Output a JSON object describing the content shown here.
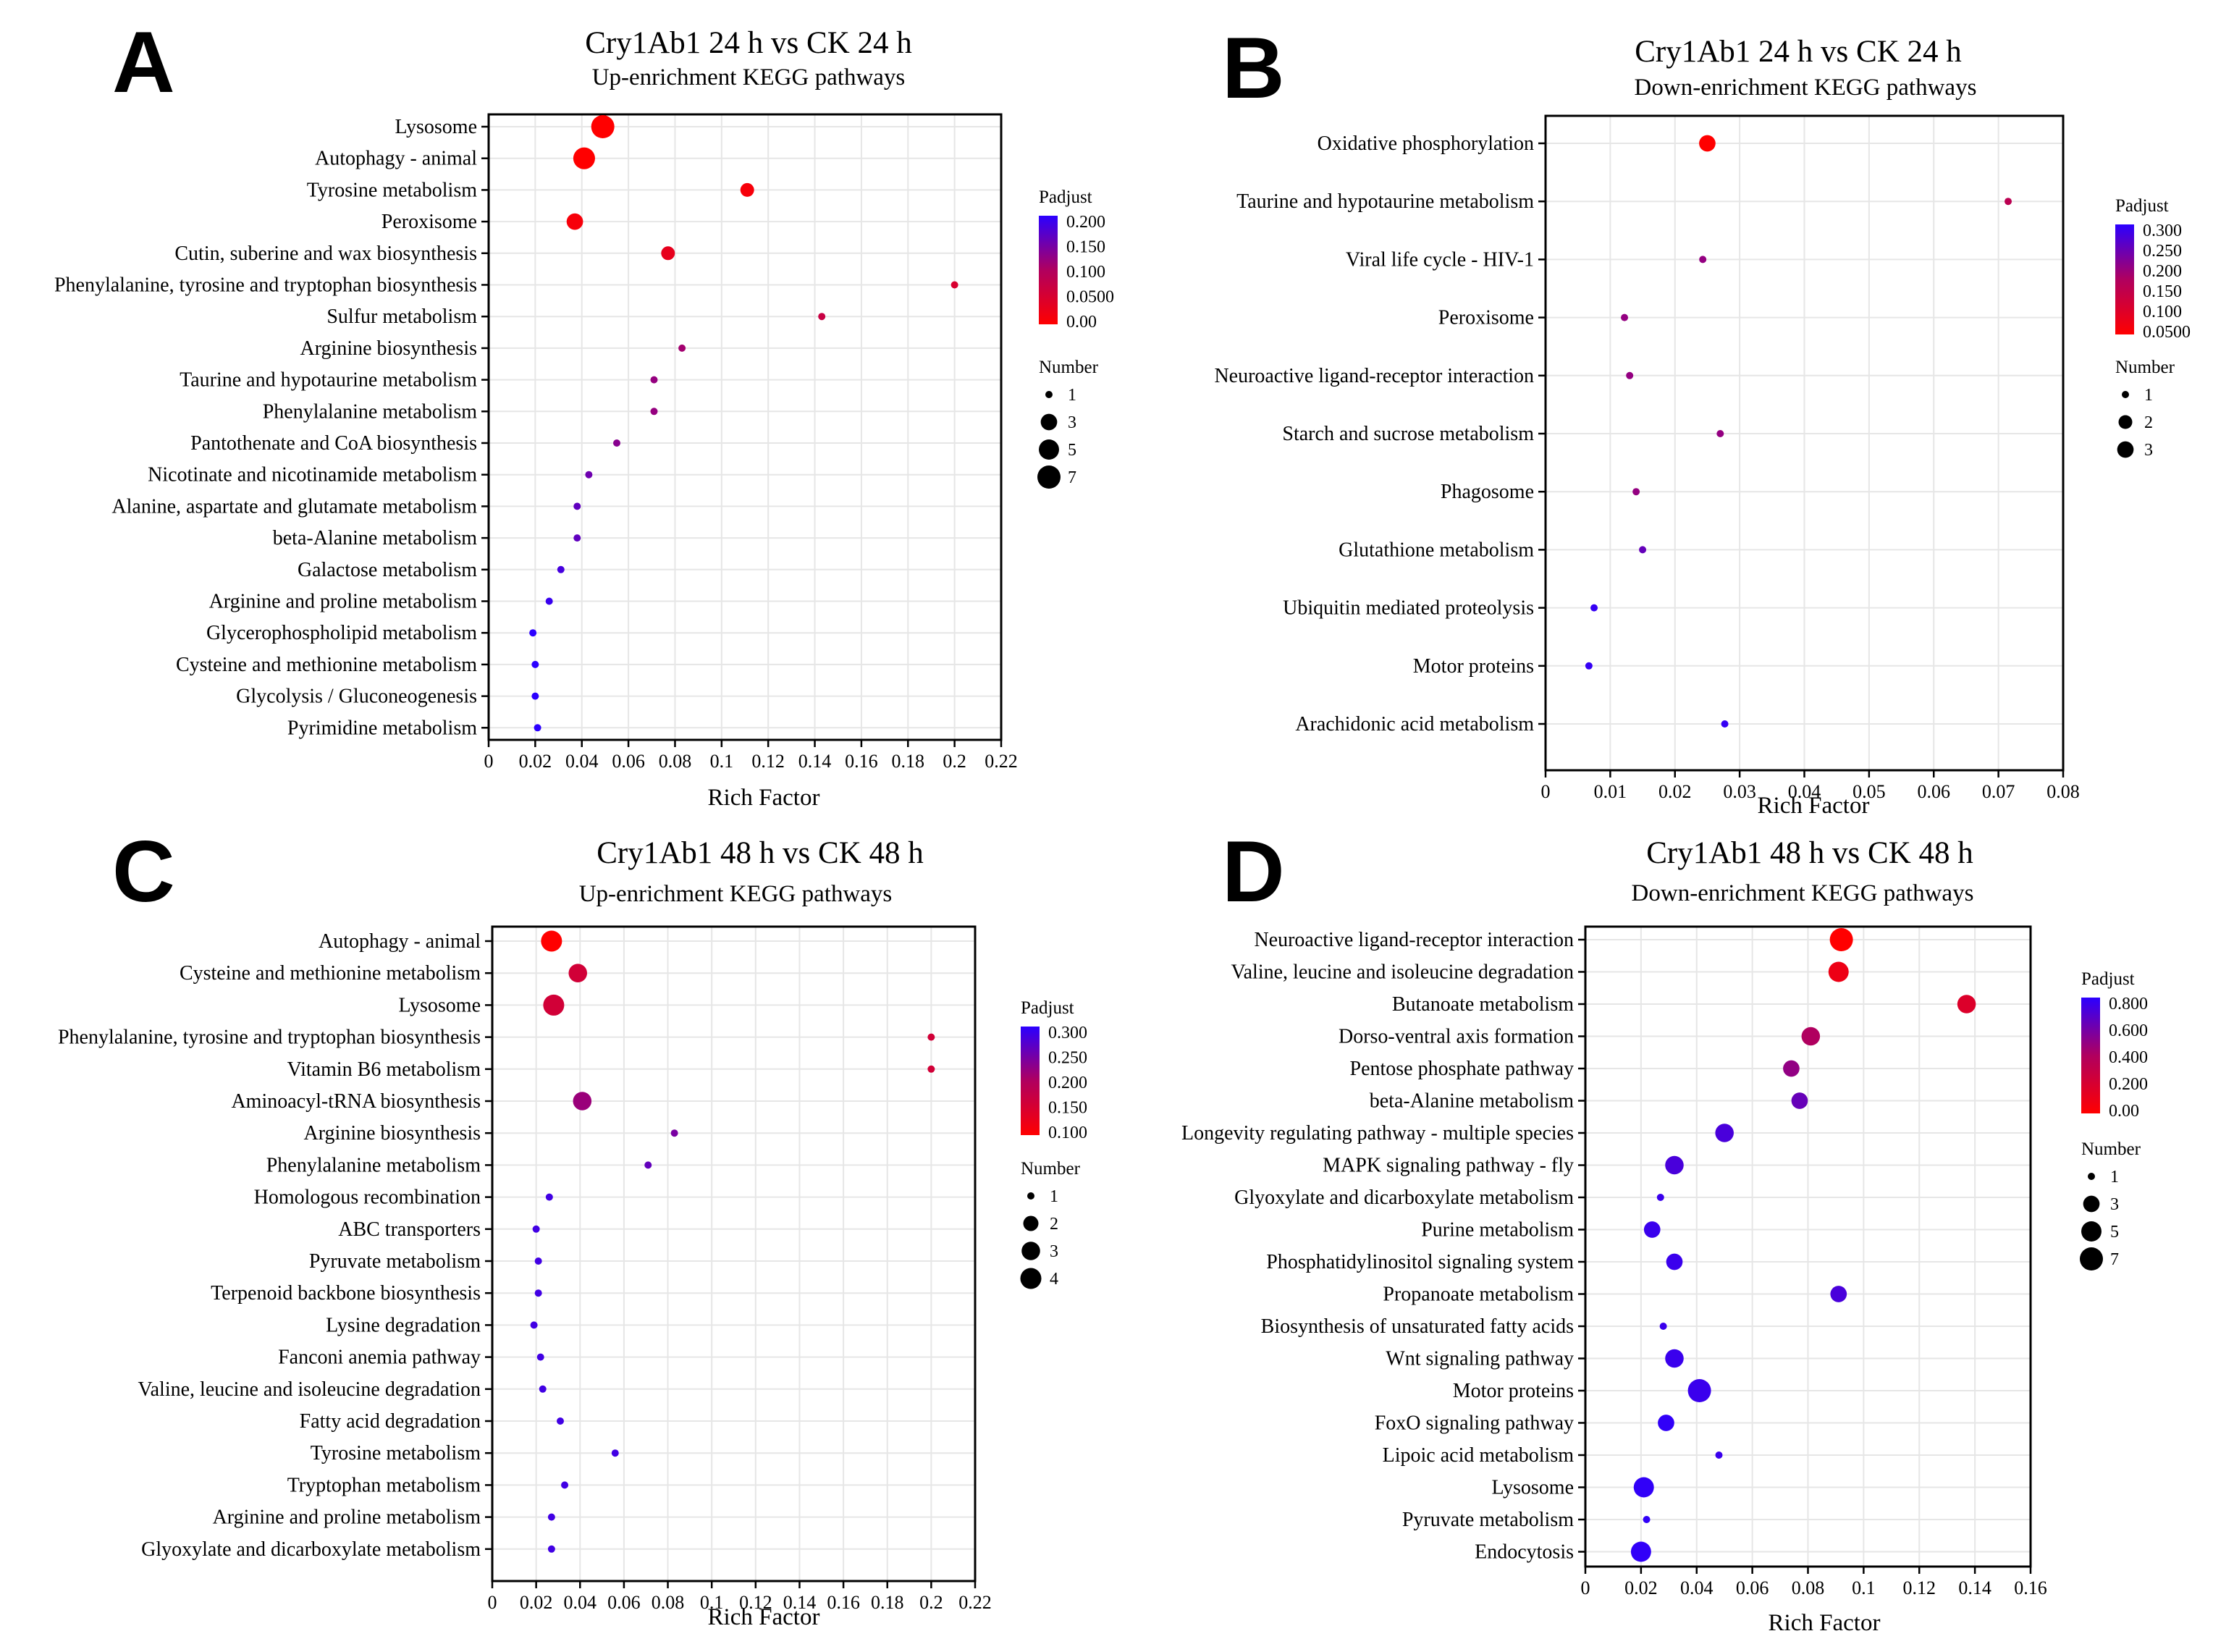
{
  "colors": {
    "low_padjust": "#ff0000",
    "high_padjust": "#2b00ff",
    "frame": "#000000",
    "grid": "#e6e6e6"
  },
  "chart_data": [
    {
      "panel": "A",
      "type": "scatter",
      "title": "Cry1Ab1 24 h vs CK 24 h",
      "subtitle": "Up-enrichment KEGG pathways",
      "xlabel": "Rich Factor",
      "xlim": [
        0,
        0.22
      ],
      "xticks": [
        0,
        0.02,
        0.04,
        0.06,
        0.08,
        0.1,
        0.12,
        0.14,
        0.16,
        0.18,
        0.2,
        0.22
      ],
      "xtick_labels": [
        "0",
        "0.02",
        "0.04",
        "0.06",
        "0.08",
        "0.1",
        "0.12",
        "0.14",
        "0.16",
        "0.18",
        "0.2",
        "0.22"
      ],
      "color_legend": {
        "title": "Padjust",
        "min": 0,
        "max": 0.2,
        "ticks": [
          "0.200",
          "0.150",
          "0.100",
          "0.0500",
          "0.00"
        ]
      },
      "size_legend": {
        "title": "Number",
        "values": [
          1,
          3,
          5,
          7
        ],
        "max": 7
      },
      "points": [
        {
          "pathway": "Lysosome",
          "rich_factor": 0.049,
          "number": 7,
          "padjust": 0.0
        },
        {
          "pathway": "Autophagy - animal",
          "rich_factor": 0.041,
          "number": 6,
          "padjust": 0.0
        },
        {
          "pathway": "Tyrosine metabolism",
          "rich_factor": 0.111,
          "number": 2,
          "padjust": 0.01
        },
        {
          "pathway": "Peroxisome",
          "rich_factor": 0.037,
          "number": 3,
          "padjust": 0.01
        },
        {
          "pathway": "Cutin, suberine and wax biosynthesis",
          "rich_factor": 0.077,
          "number": 2,
          "padjust": 0.03
        },
        {
          "pathway": "Phenylalanine, tyrosine and tryptophan biosynthesis",
          "rich_factor": 0.2,
          "number": 1,
          "padjust": 0.05
        },
        {
          "pathway": "Sulfur metabolism",
          "rich_factor": 0.143,
          "number": 1,
          "padjust": 0.07
        },
        {
          "pathway": "Arginine biosynthesis",
          "rich_factor": 0.083,
          "number": 1,
          "padjust": 0.11
        },
        {
          "pathway": "Taurine and hypotaurine metabolism",
          "rich_factor": 0.071,
          "number": 1,
          "padjust": 0.12
        },
        {
          "pathway": "Phenylalanine metabolism",
          "rich_factor": 0.071,
          "number": 1,
          "padjust": 0.12
        },
        {
          "pathway": "Pantothenate and CoA biosynthesis",
          "rich_factor": 0.055,
          "number": 1,
          "padjust": 0.13
        },
        {
          "pathway": "Nicotinate and nicotinamide metabolism",
          "rich_factor": 0.043,
          "number": 1,
          "padjust": 0.15
        },
        {
          "pathway": "Alanine, aspartate and glutamate metabolism",
          "rich_factor": 0.038,
          "number": 1,
          "padjust": 0.16
        },
        {
          "pathway": "beta-Alanine metabolism",
          "rich_factor": 0.038,
          "number": 1,
          "padjust": 0.16
        },
        {
          "pathway": "Galactose metabolism",
          "rich_factor": 0.031,
          "number": 1,
          "padjust": 0.18
        },
        {
          "pathway": "Arginine and proline metabolism",
          "rich_factor": 0.026,
          "number": 1,
          "padjust": 0.19
        },
        {
          "pathway": "Glycerophospholipid metabolism",
          "rich_factor": 0.019,
          "number": 1,
          "padjust": 0.2
        },
        {
          "pathway": "Cysteine and methionine metabolism",
          "rich_factor": 0.02,
          "number": 1,
          "padjust": 0.2
        },
        {
          "pathway": "Glycolysis / Gluconeogenesis",
          "rich_factor": 0.02,
          "number": 1,
          "padjust": 0.2
        },
        {
          "pathway": "Pyrimidine metabolism",
          "rich_factor": 0.021,
          "number": 1,
          "padjust": 0.2
        }
      ]
    },
    {
      "panel": "B",
      "type": "scatter",
      "title": "Cry1Ab1 24 h vs CK 24 h",
      "subtitle": "Down-enrichment KEGG pathways",
      "xlabel": "Rich Factor",
      "xlim": [
        0,
        0.08
      ],
      "xticks": [
        0,
        0.01,
        0.02,
        0.03,
        0.04,
        0.05,
        0.06,
        0.07,
        0.08
      ],
      "xtick_labels": [
        "0",
        "0.01",
        "0.02",
        "0.03",
        "0.04",
        "0.05",
        "0.06",
        "0.07",
        "0.08"
      ],
      "color_legend": {
        "title": "Padjust",
        "min": 0.03,
        "max": 0.31,
        "ticks": [
          "0.300",
          "0.250",
          "0.200",
          "0.150",
          "0.100",
          "0.0500"
        ]
      },
      "size_legend": {
        "title": "Number",
        "values": [
          1,
          2,
          3
        ],
        "max": 7
      },
      "points": [
        {
          "pathway": "Oxidative phosphorylation",
          "rich_factor": 0.025,
          "number": 3,
          "padjust": 0.03
        },
        {
          "pathway": "Taurine and hypotaurine metabolism",
          "rich_factor": 0.0715,
          "number": 1,
          "padjust": 0.15
        },
        {
          "pathway": "Viral life cycle - HIV-1",
          "rich_factor": 0.0243,
          "number": 1,
          "padjust": 0.2
        },
        {
          "pathway": "Peroxisome",
          "rich_factor": 0.0122,
          "number": 1,
          "padjust": 0.2
        },
        {
          "pathway": "Neuroactive ligand-receptor interaction",
          "rich_factor": 0.013,
          "number": 1,
          "padjust": 0.2
        },
        {
          "pathway": "Starch and sucrose metabolism",
          "rich_factor": 0.027,
          "number": 1,
          "padjust": 0.2
        },
        {
          "pathway": "Phagosome",
          "rich_factor": 0.014,
          "number": 1,
          "padjust": 0.2
        },
        {
          "pathway": "Glutathione metabolism",
          "rich_factor": 0.015,
          "number": 1,
          "padjust": 0.25
        },
        {
          "pathway": "Ubiquitin mediated proteolysis",
          "rich_factor": 0.0075,
          "number": 1,
          "padjust": 0.3
        },
        {
          "pathway": "Motor proteins",
          "rich_factor": 0.0067,
          "number": 1,
          "padjust": 0.3
        },
        {
          "pathway": "Arachidonic acid metabolism",
          "rich_factor": 0.0277,
          "number": 1,
          "padjust": 0.3
        }
      ]
    },
    {
      "panel": "C",
      "type": "scatter",
      "title": "Cry1Ab1 48 h vs CK 48 h",
      "subtitle": "Up-enrichment KEGG pathways",
      "xlabel": "Rich Factor",
      "xlim": [
        0,
        0.22
      ],
      "xticks": [
        0,
        0.02,
        0.04,
        0.06,
        0.08,
        0.1,
        0.12,
        0.14,
        0.16,
        0.18,
        0.2,
        0.22
      ],
      "xtick_labels": [
        "0",
        "0.02",
        "0.04",
        "0.06",
        "0.08",
        "0.1",
        "0.12",
        "0.14",
        "0.16",
        "0.18",
        "0.2",
        "0.22"
      ],
      "color_legend": {
        "title": "Padjust",
        "min": 0.08,
        "max": 0.32,
        "ticks": [
          "0.300",
          "0.250",
          "0.200",
          "0.150",
          "0.100"
        ]
      },
      "size_legend": {
        "title": "Number",
        "values": [
          1,
          2,
          3,
          4
        ],
        "max": 5
      },
      "points": [
        {
          "pathway": "Autophagy - animal",
          "rich_factor": 0.027,
          "number": 4,
          "padjust": 0.08
        },
        {
          "pathway": "Cysteine and methionine metabolism",
          "rich_factor": 0.039,
          "number": 3,
          "padjust": 0.15
        },
        {
          "pathway": "Lysosome",
          "rich_factor": 0.028,
          "number": 4,
          "padjust": 0.15
        },
        {
          "pathway": "Phenylalanine, tyrosine and tryptophan biosynthesis",
          "rich_factor": 0.2,
          "number": 1,
          "padjust": 0.15
        },
        {
          "pathway": "Vitamin B6 metabolism",
          "rich_factor": 0.2,
          "number": 1,
          "padjust": 0.15
        },
        {
          "pathway": "Aminoacyl-tRNA biosynthesis",
          "rich_factor": 0.041,
          "number": 3,
          "padjust": 0.22
        },
        {
          "pathway": "Arginine biosynthesis",
          "rich_factor": 0.083,
          "number": 1,
          "padjust": 0.25
        },
        {
          "pathway": "Phenylalanine metabolism",
          "rich_factor": 0.071,
          "number": 1,
          "padjust": 0.27
        },
        {
          "pathway": "Homologous recombination",
          "rich_factor": 0.026,
          "number": 1,
          "padjust": 0.3
        },
        {
          "pathway": "ABC transporters",
          "rich_factor": 0.02,
          "number": 1,
          "padjust": 0.3
        },
        {
          "pathway": "Pyruvate metabolism",
          "rich_factor": 0.021,
          "number": 1,
          "padjust": 0.3
        },
        {
          "pathway": "Terpenoid backbone biosynthesis",
          "rich_factor": 0.021,
          "number": 1,
          "padjust": 0.3
        },
        {
          "pathway": "Lysine degradation",
          "rich_factor": 0.019,
          "number": 1,
          "padjust": 0.3
        },
        {
          "pathway": "Fanconi anemia pathway",
          "rich_factor": 0.022,
          "number": 1,
          "padjust": 0.3
        },
        {
          "pathway": "Valine, leucine and isoleucine degradation",
          "rich_factor": 0.023,
          "number": 1,
          "padjust": 0.3
        },
        {
          "pathway": "Fatty acid degradation",
          "rich_factor": 0.031,
          "number": 1,
          "padjust": 0.3
        },
        {
          "pathway": "Tyrosine metabolism",
          "rich_factor": 0.056,
          "number": 1,
          "padjust": 0.3
        },
        {
          "pathway": "Tryptophan metabolism",
          "rich_factor": 0.033,
          "number": 1,
          "padjust": 0.3
        },
        {
          "pathway": "Arginine and proline metabolism",
          "rich_factor": 0.027,
          "number": 1,
          "padjust": 0.3
        },
        {
          "pathway": "Glyoxylate and dicarboxylate metabolism",
          "rich_factor": 0.027,
          "number": 1,
          "padjust": 0.3
        }
      ]
    },
    {
      "panel": "D",
      "type": "scatter",
      "title": "Cry1Ab1 48 h vs CK 48 h",
      "subtitle": "Down-enrichment KEGG pathways",
      "xlabel": "Rich Factor",
      "xlim": [
        0,
        0.16
      ],
      "xticks": [
        0,
        0.02,
        0.04,
        0.06,
        0.08,
        0.1,
        0.12,
        0.14,
        0.16
      ],
      "xtick_labels": [
        "0",
        "0.02",
        "0.04",
        "0.06",
        "0.08",
        "0.1",
        "0.12",
        "0.14",
        "0.16"
      ],
      "color_legend": {
        "title": "Padjust",
        "min": 0,
        "max": 0.9,
        "ticks": [
          "0.800",
          "0.600",
          "0.400",
          "0.200",
          "0.00"
        ]
      },
      "size_legend": {
        "title": "Number",
        "values": [
          1,
          3,
          5,
          7
        ],
        "max": 7
      },
      "points": [
        {
          "pathway": "Neuroactive ligand-receptor interaction",
          "rich_factor": 0.092,
          "number": 7,
          "padjust": 0.0
        },
        {
          "pathway": "Valine, leucine and isoleucine degradation",
          "rich_factor": 0.091,
          "number": 5,
          "padjust": 0.1
        },
        {
          "pathway": "Butanoate metabolism",
          "rich_factor": 0.137,
          "number": 4,
          "padjust": 0.2
        },
        {
          "pathway": "Dorso-ventral axis formation",
          "rich_factor": 0.081,
          "number": 4,
          "padjust": 0.45
        },
        {
          "pathway": "Pentose phosphate pathway",
          "rich_factor": 0.074,
          "number": 3,
          "padjust": 0.55
        },
        {
          "pathway": "beta-Alanine metabolism",
          "rich_factor": 0.077,
          "number": 3,
          "padjust": 0.7
        },
        {
          "pathway": "Longevity regulating pathway - multiple species",
          "rich_factor": 0.05,
          "number": 4,
          "padjust": 0.8
        },
        {
          "pathway": "MAPK signaling pathway - fly",
          "rich_factor": 0.032,
          "number": 4,
          "padjust": 0.8
        },
        {
          "pathway": "Glyoxylate and dicarboxylate metabolism",
          "rich_factor": 0.027,
          "number": 1,
          "padjust": 0.85
        },
        {
          "pathway": "Purine metabolism",
          "rich_factor": 0.024,
          "number": 3,
          "padjust": 0.85
        },
        {
          "pathway": "Phosphatidylinositol signaling system",
          "rich_factor": 0.032,
          "number": 3,
          "padjust": 0.85
        },
        {
          "pathway": "Propanoate metabolism",
          "rich_factor": 0.091,
          "number": 3,
          "padjust": 0.8
        },
        {
          "pathway": "Biosynthesis of unsaturated fatty acids",
          "rich_factor": 0.028,
          "number": 1,
          "padjust": 0.85
        },
        {
          "pathway": "Wnt signaling pathway",
          "rich_factor": 0.032,
          "number": 4,
          "padjust": 0.85
        },
        {
          "pathway": "Motor proteins",
          "rich_factor": 0.041,
          "number": 7,
          "padjust": 0.85
        },
        {
          "pathway": "FoxO signaling pathway",
          "rich_factor": 0.029,
          "number": 3,
          "padjust": 0.88
        },
        {
          "pathway": "Lipoic acid metabolism",
          "rich_factor": 0.048,
          "number": 1,
          "padjust": 0.85
        },
        {
          "pathway": "Lysosome",
          "rich_factor": 0.021,
          "number": 5,
          "padjust": 0.88
        },
        {
          "pathway": "Pyruvate metabolism",
          "rich_factor": 0.022,
          "number": 1,
          "padjust": 0.88
        },
        {
          "pathway": "Endocytosis",
          "rich_factor": 0.02,
          "number": 5,
          "padjust": 0.88
        }
      ]
    }
  ]
}
